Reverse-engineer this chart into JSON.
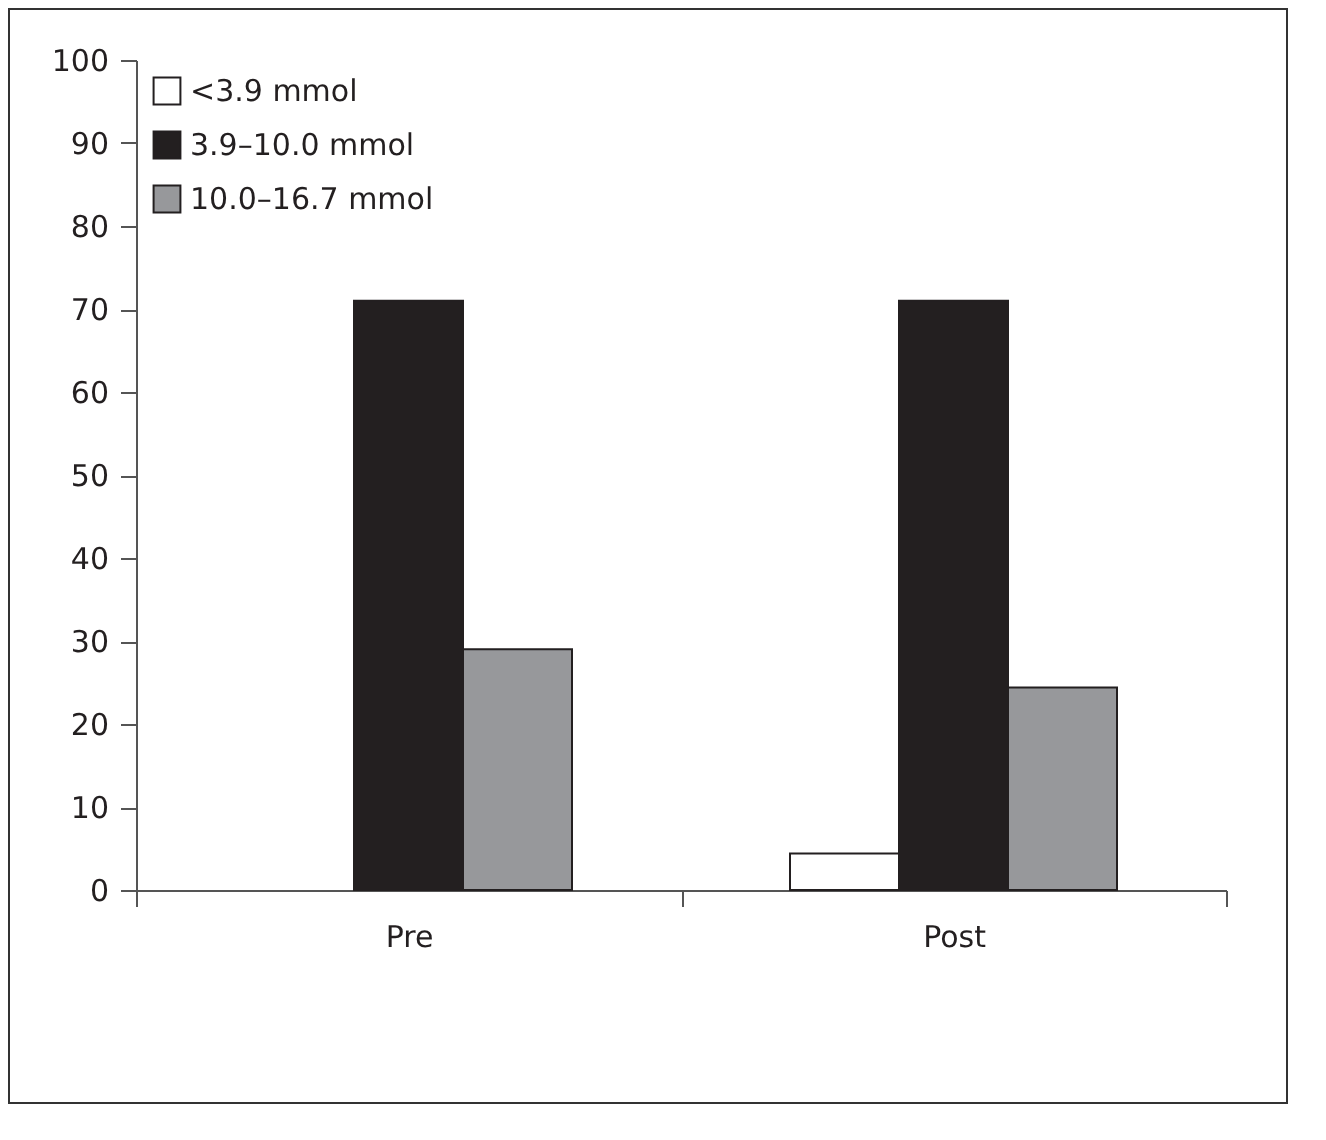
{
  "chart_data": {
    "type": "bar",
    "categories": [
      "Pre",
      "Post"
    ],
    "series": [
      {
        "name": "<3.9 mmol",
        "color": "#ffffff",
        "values": [
          null,
          4.4
        ]
      },
      {
        "name": "3.9–10.0 mmol",
        "color": "#231f20",
        "values": [
          71,
          71
        ]
      },
      {
        "name": "10.0–16.7 mmol",
        "color": "#97989b",
        "values": [
          29,
          24.4
        ]
      }
    ],
    "ylim": [
      0,
      100
    ],
    "yticks": [
      0,
      10,
      20,
      30,
      40,
      50,
      60,
      70,
      80,
      90,
      100
    ],
    "grid": false,
    "legend": "top left"
  }
}
